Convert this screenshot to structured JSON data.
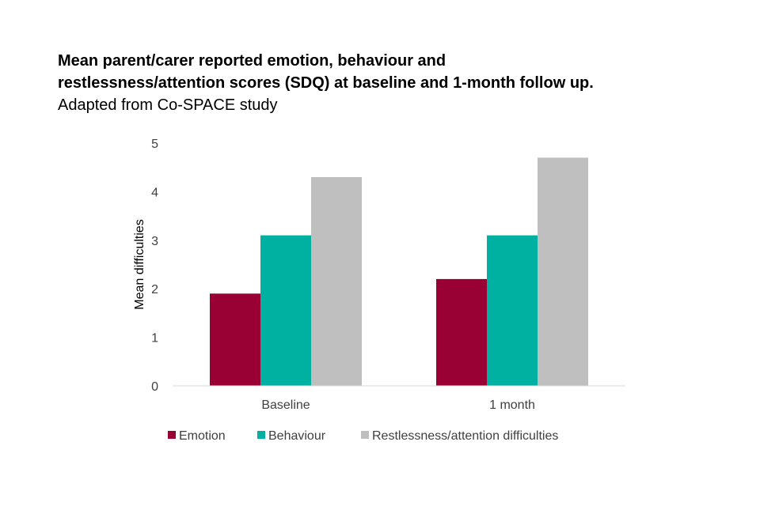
{
  "title_lines": [
    "Mean parent/carer reported emotion, behaviour and",
    "restlessness/attention scores (SDQ) at baseline and 1-month follow up."
  ],
  "subtitle": "Adapted from Co-SPACE study",
  "chart_data": {
    "type": "bar",
    "title": "Mean parent/carer reported emotion, behaviour and restlessness/attention scores (SDQ) at baseline and 1-month follow up.",
    "subtitle": "Adapted from Co-SPACE study",
    "categories": [
      "Baseline",
      "1 month"
    ],
    "series": [
      {
        "name": "Emotion",
        "values": [
          1.9,
          2.2
        ],
        "color": "#990033"
      },
      {
        "name": "Behaviour",
        "values": [
          3.1,
          3.1
        ],
        "color": "#00B0A0"
      },
      {
        "name": "Restlessness/attention difficulties",
        "values": [
          4.3,
          4.7
        ],
        "color": "#BFBFBF"
      }
    ],
    "xlabel": "",
    "ylabel": "Mean difficulties",
    "ylim": [
      0,
      5
    ],
    "yticks": [
      "0",
      "1",
      "2",
      "3",
      "4",
      "5"
    ],
    "grid": false,
    "legend_position": "bottom"
  }
}
